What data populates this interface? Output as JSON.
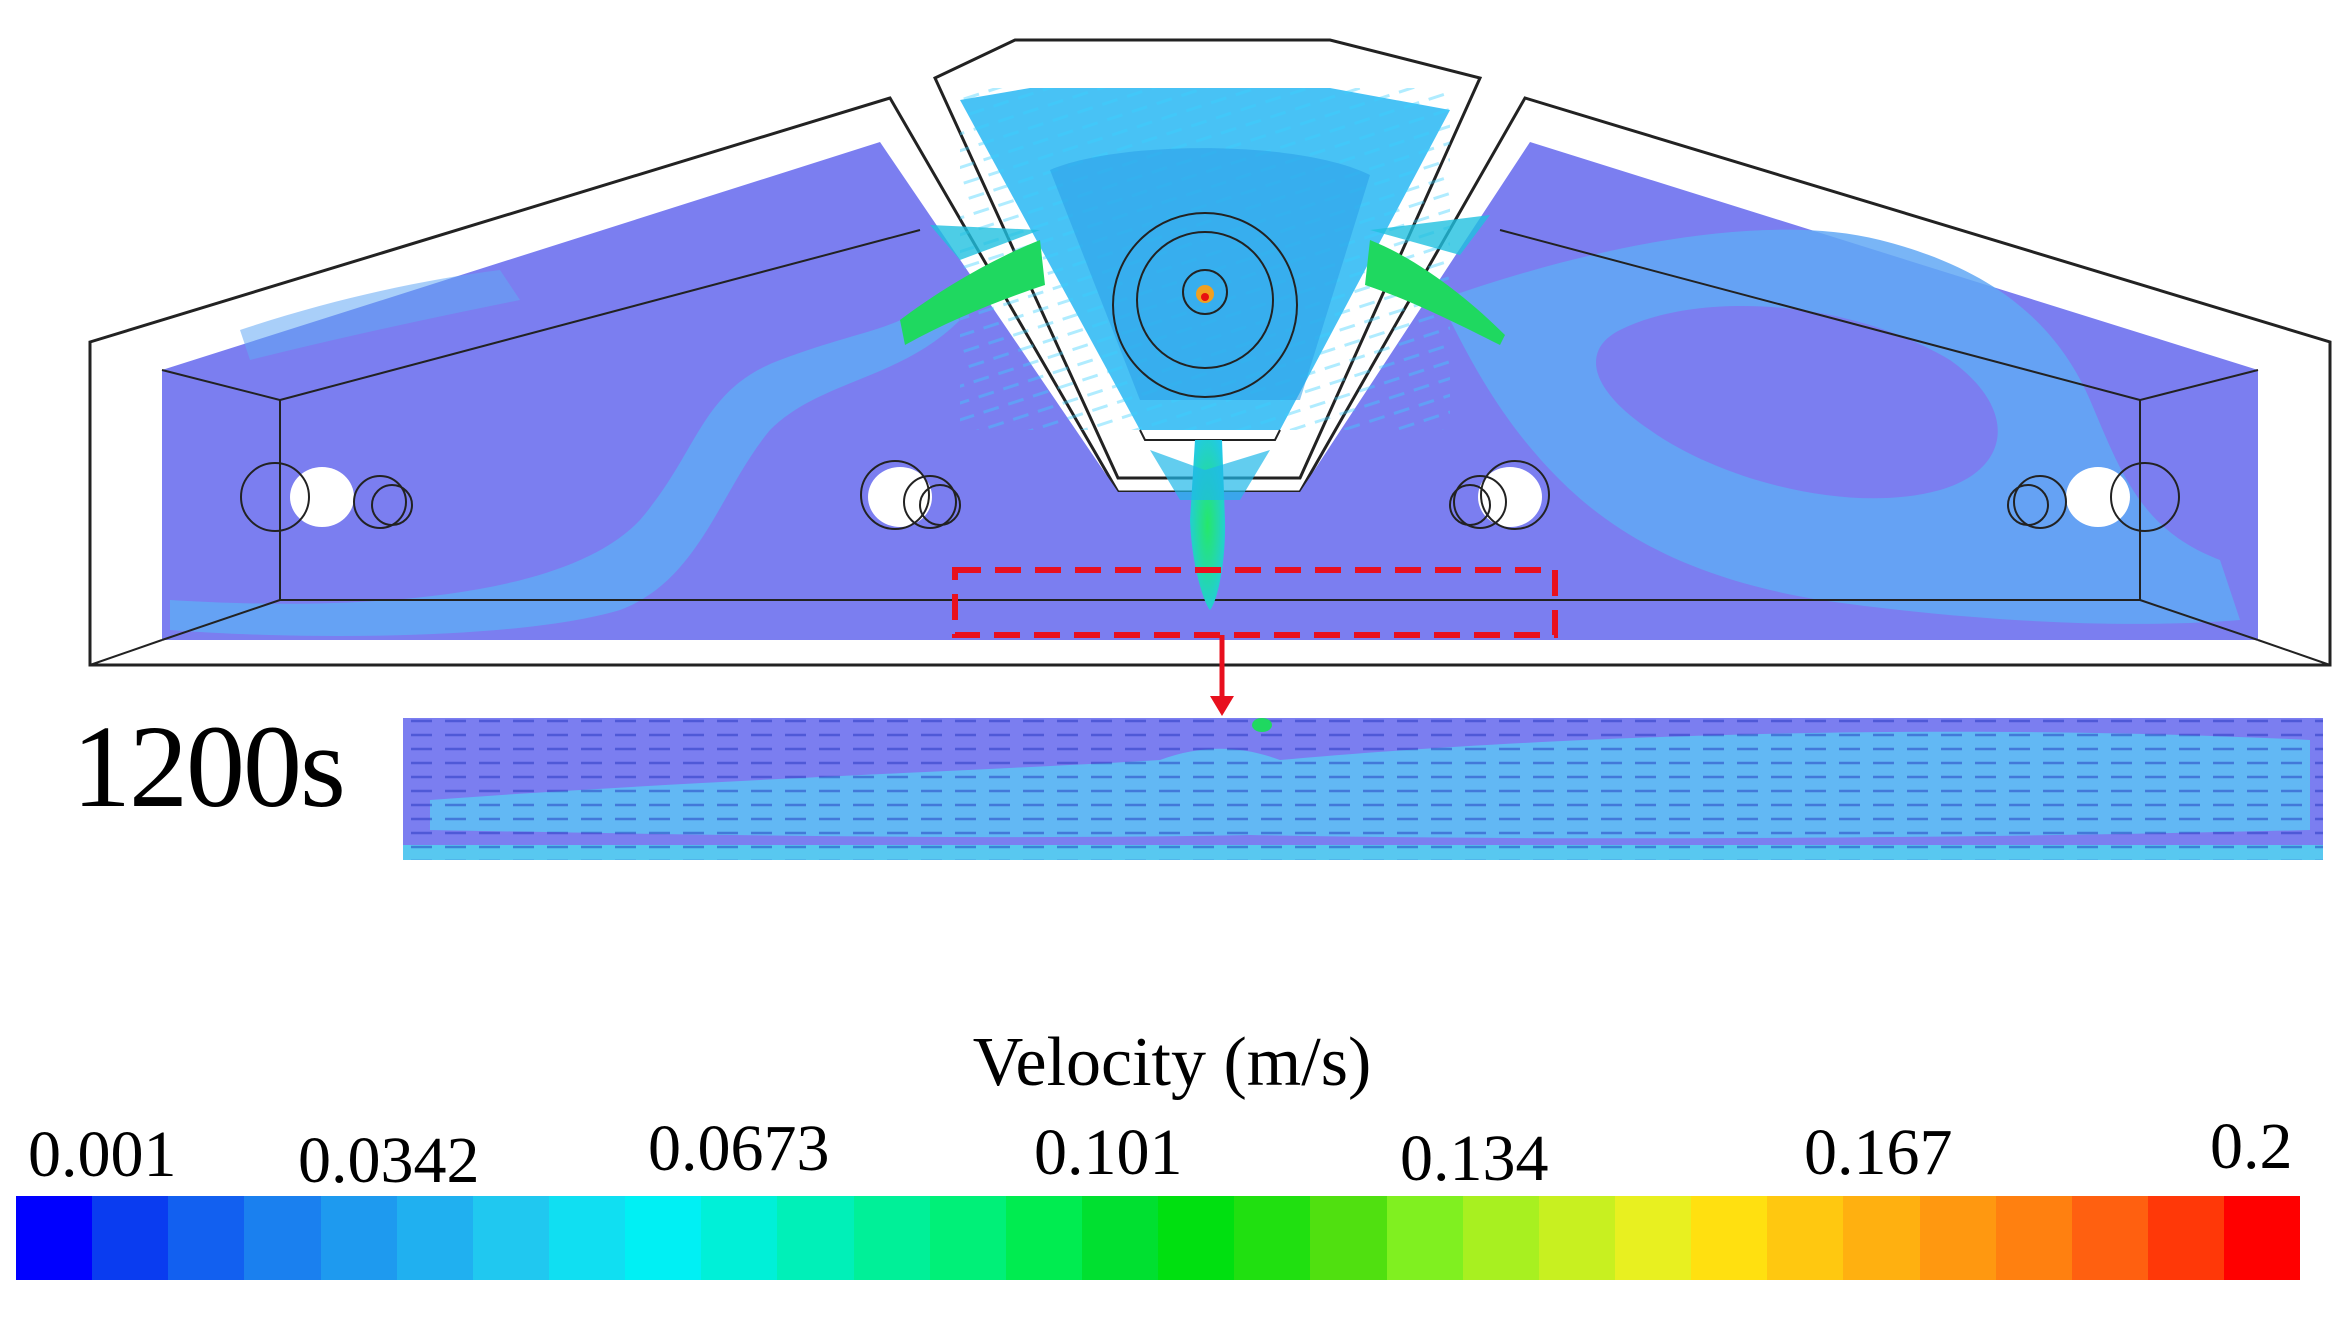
{
  "figure": {
    "time_label": "1200s"
  },
  "legend": {
    "title": "Velocity (m/s)",
    "ticks": [
      "0.001",
      "0.0342",
      "0.0673",
      "0.101",
      "0.134",
      "0.167",
      "0.2"
    ],
    "min": 0.001,
    "max": 0.2,
    "colors": [
      "#0000ff",
      "#0a3cf0",
      "#1260f0",
      "#1a80ef",
      "#1e9aef",
      "#20b0f0",
      "#20c8f0",
      "#10dff2",
      "#00f0f4",
      "#00f0d8",
      "#00f0b8",
      "#00f098",
      "#00f078",
      "#00ec50",
      "#00e030",
      "#00e010",
      "#20e010",
      "#50e010",
      "#80f020",
      "#a8f020",
      "#c8f020",
      "#e8f020",
      "#ffe010",
      "#ffc810",
      "#ffb010",
      "#ff9810",
      "#ff8010",
      "#ff6010",
      "#ff3808",
      "#ff0000"
    ]
  },
  "colors": {
    "fluid": "#7b7ef0",
    "fluid_light": "#68b4f2",
    "jet": "#1fd860",
    "outline": "#222222",
    "highlight_box": "#e8101e"
  }
}
